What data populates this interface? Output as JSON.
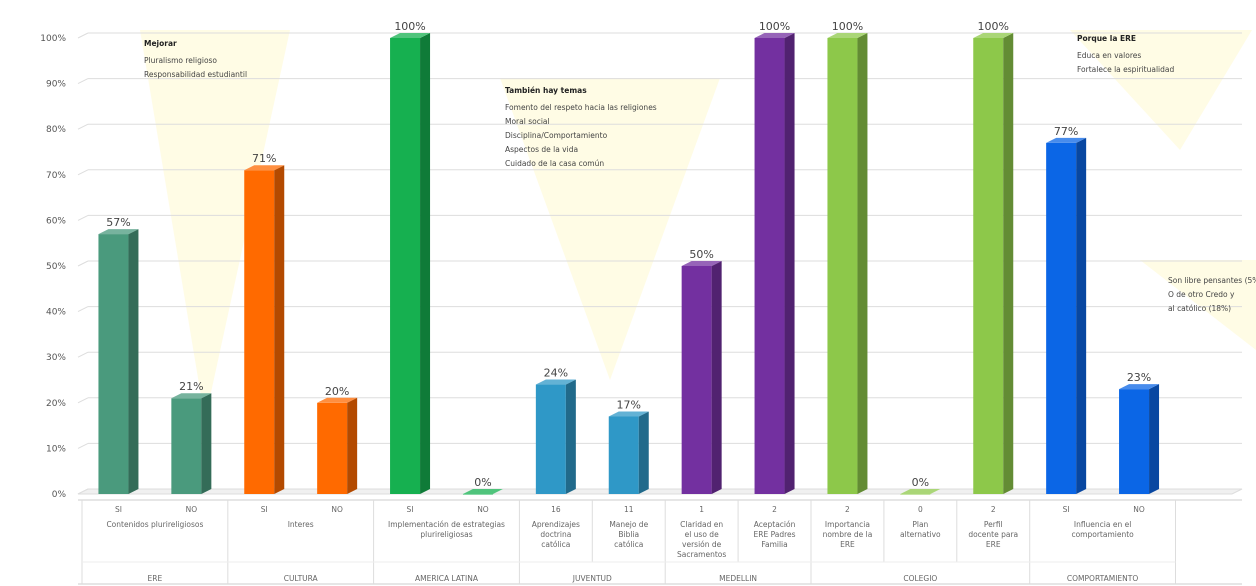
{
  "chart_data": {
    "type": "bar",
    "ylim": [
      0,
      100
    ],
    "y_ticks": [
      "0%",
      "10%",
      "20%",
      "30%",
      "40%",
      "50%",
      "60%",
      "70%",
      "80%",
      "90%",
      "100%"
    ],
    "grid": true,
    "three_d": true,
    "bars": [
      {
        "sub": "SI",
        "cat": "Contenidos plurireligiosos",
        "value": 57,
        "label": "57%",
        "color": "#4a9a7d"
      },
      {
        "sub": "NO",
        "cat": "",
        "value": 21,
        "label": "21%",
        "color": "#4a9a7d"
      },
      {
        "sub": "SI",
        "cat": "Interes",
        "value": 71,
        "label": "71%",
        "color": "#ff6a00"
      },
      {
        "sub": "NO",
        "cat": "",
        "value": 20,
        "label": "20%",
        "color": "#ff6a00"
      },
      {
        "sub": "SI",
        "cat": "Implementación de estrategias plurireligiosas",
        "value": 100,
        "label": "100%",
        "color": "#16b050"
      },
      {
        "sub": "NO",
        "cat": "",
        "value": 0,
        "label": "0%",
        "color": "#16b050"
      },
      {
        "sub": "16",
        "cat": "Aprendizajes doctrina católica",
        "value": 24,
        "label": "24%",
        "color": "#2f98c7"
      },
      {
        "sub": "11",
        "cat": "Manejo de Biblia católica",
        "value": 17,
        "label": "17%",
        "color": "#2f98c7"
      },
      {
        "sub": "1",
        "cat": "Claridad en el uso de versión de Sacramentos",
        "value": 50,
        "label": "50%",
        "color": "#7330a0"
      },
      {
        "sub": "2",
        "cat": "Aceptación ERE Padres Familia",
        "value": 100,
        "label": "100%",
        "color": "#7330a0"
      },
      {
        "sub": "2",
        "cat": "Importancia nombre de la ERE",
        "value": 100,
        "label": "100%",
        "color": "#8dc84a"
      },
      {
        "sub": "0",
        "cat": "Plan alternativo",
        "value": 0,
        "label": "0%",
        "color": "#8dc84a"
      },
      {
        "sub": "2",
        "cat": "Perfil docente para ERE",
        "value": 100,
        "label": "100%",
        "color": "#8dc84a"
      },
      {
        "sub": "SI",
        "cat": "Influencia en el comportamiento",
        "value": 77,
        "label": "77%",
        "color": "#0b66e6"
      },
      {
        "sub": "NO",
        "cat": "",
        "value": 23,
        "label": "23%",
        "color": "#0b66e6"
      }
    ],
    "groups": [
      {
        "name": "ERE",
        "start": 0,
        "end": 1
      },
      {
        "name": "CULTURA",
        "start": 2,
        "end": 3
      },
      {
        "name": "AMERICA LATINA",
        "start": 4,
        "end": 5
      },
      {
        "name": "JUVENTUD",
        "start": 6,
        "end": 7
      },
      {
        "name": "MEDELLIN",
        "start": 8,
        "end": 9
      },
      {
        "name": "COLEGIO",
        "start": 10,
        "end": 12
      },
      {
        "name": "COMPORTAMIENTO",
        "start": 13,
        "end": 14
      }
    ],
    "annotations": [
      {
        "title": "Mejorar",
        "lines": [
          "Pluralismo religioso",
          "Responsabilidad estudiantil"
        ]
      },
      {
        "title": "También hay temas",
        "lines": [
          "Fomento del respeto hacia las religiones",
          "Moral social",
          "Disciplina/Comportamiento",
          "Aspectos de la vida",
          "Cuidado de la casa común"
        ]
      },
      {
        "title": "Porque la ERE",
        "lines": [
          "Educa en valores",
          "Fortalece la espiritualidad"
        ]
      },
      {
        "title": "",
        "lines": [
          "Son libre pensantes (5%",
          "O de otro Credo y",
          "al católico (18%)"
        ]
      }
    ]
  }
}
